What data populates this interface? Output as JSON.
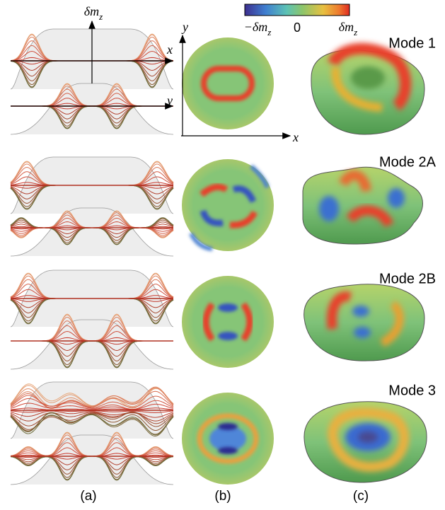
{
  "panel_a": {
    "axis_labels": {
      "vertical": {
        "main": "δm",
        "sub": "z"
      },
      "x": "x",
      "y": "y"
    }
  },
  "panel_b": {
    "axis_labels": {
      "x": "x",
      "y": "y"
    }
  },
  "colorbar": {
    "labels": [
      {
        "main": "−δm",
        "sub": "z"
      },
      "0",
      {
        "main": "δm",
        "sub": "z"
      }
    ]
  },
  "modes": [
    "Mode 1",
    "Mode 2A",
    "Mode 2B",
    "Mode 3"
  ],
  "panel_labels": [
    "(a)",
    "(b)",
    "(c)"
  ]
}
